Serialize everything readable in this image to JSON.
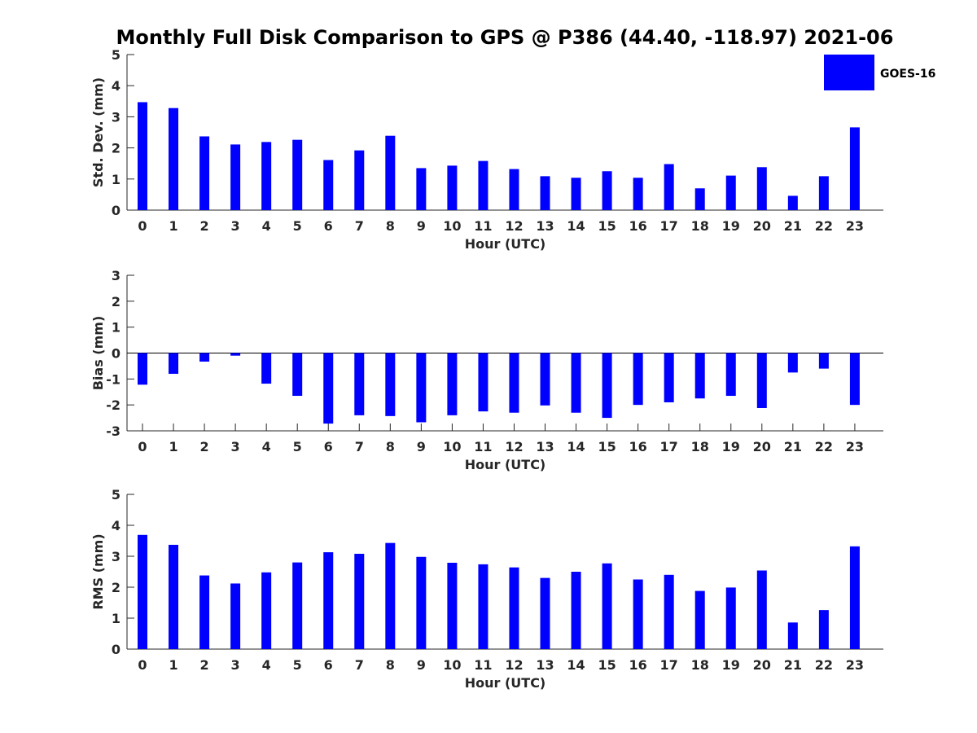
{
  "figure": {
    "title": "Monthly Full Disk Comparison to GPS @ P386 (44.40, -118.97) 2021-06"
  },
  "legend": {
    "label": "GOES-16",
    "color": "#0000ff"
  },
  "chart_data": [
    {
      "type": "bar",
      "xlabel": "Hour (UTC)",
      "ylabel": "Std. Dev. (mm)",
      "ylim": [
        0,
        5
      ],
      "yticks": [
        "0",
        "1",
        "2",
        "3",
        "4",
        "5"
      ],
      "categories": [
        "0",
        "1",
        "2",
        "3",
        "4",
        "5",
        "6",
        "7",
        "8",
        "9",
        "10",
        "11",
        "12",
        "13",
        "14",
        "15",
        "16",
        "17",
        "18",
        "19",
        "20",
        "21",
        "22",
        "23"
      ],
      "series": [
        {
          "name": "GOES-16",
          "values": [
            3.47,
            3.28,
            2.37,
            2.11,
            2.19,
            2.26,
            1.61,
            1.92,
            2.39,
            1.35,
            1.43,
            1.58,
            1.32,
            1.09,
            1.04,
            1.25,
            1.04,
            1.48,
            0.7,
            1.11,
            1.38,
            0.46,
            1.09,
            2.66
          ]
        }
      ],
      "legend": "top-right",
      "grid": false
    },
    {
      "type": "bar",
      "xlabel": "Hour (UTC)",
      "ylabel": "Bias (mm)",
      "ylim": [
        -3,
        3
      ],
      "yticks": [
        "-3",
        "-2",
        "-1",
        "0",
        "1",
        "2",
        "3"
      ],
      "categories": [
        "0",
        "1",
        "2",
        "3",
        "4",
        "5",
        "6",
        "7",
        "8",
        "9",
        "10",
        "11",
        "12",
        "13",
        "14",
        "15",
        "16",
        "17",
        "18",
        "19",
        "20",
        "21",
        "22",
        "23"
      ],
      "series": [
        {
          "name": "GOES-16",
          "values": [
            -1.22,
            -0.8,
            -0.33,
            -0.1,
            -1.18,
            -1.65,
            -2.72,
            -2.4,
            -2.43,
            -2.67,
            -2.4,
            -2.25,
            -2.3,
            -2.02,
            -2.3,
            -2.5,
            -2.0,
            -1.9,
            -1.75,
            -1.65,
            -2.12,
            -0.75,
            -0.6,
            -2.0
          ]
        }
      ],
      "grid": false
    },
    {
      "type": "bar",
      "xlabel": "Hour (UTC)",
      "ylabel": "RMS (mm)",
      "ylim": [
        0,
        5
      ],
      "yticks": [
        "0",
        "1",
        "2",
        "3",
        "4",
        "5"
      ],
      "categories": [
        "0",
        "1",
        "2",
        "3",
        "4",
        "5",
        "6",
        "7",
        "8",
        "9",
        "10",
        "11",
        "12",
        "13",
        "14",
        "15",
        "16",
        "17",
        "18",
        "19",
        "20",
        "21",
        "22",
        "23"
      ],
      "series": [
        {
          "name": "GOES-16",
          "values": [
            3.69,
            3.37,
            2.38,
            2.12,
            2.48,
            2.8,
            3.13,
            3.08,
            3.43,
            2.98,
            2.79,
            2.74,
            2.64,
            2.3,
            2.5,
            2.77,
            2.25,
            2.4,
            1.88,
            1.99,
            2.54,
            0.86,
            1.26,
            3.32
          ]
        }
      ],
      "grid": false
    }
  ]
}
